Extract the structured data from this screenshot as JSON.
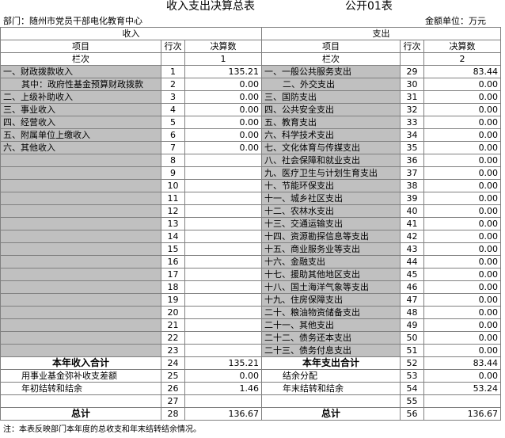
{
  "header": {
    "title": "收入支出决算总表",
    "form": "公开01表",
    "department": "部门：随州市党员干部电化教育中心",
    "unit": "金额单位：万元"
  },
  "columns": {
    "income": "收入",
    "expense": "支出",
    "item": "项目",
    "line": "行次",
    "amount": "决算数",
    "index": "栏次",
    "col1": "1",
    "col2": "2"
  },
  "rows": [
    [
      "一、财政拨款收入",
      1,
      "135.21",
      "一、一般公共服务支出",
      29,
      "83.44"
    ],
    [
      "其中：政府性基金预算财政拨款",
      2,
      "0.00",
      "二、外交支出",
      30,
      "0.00"
    ],
    [
      "二、上级补助收入",
      3,
      "0.00",
      "三、国防支出",
      31,
      "0.00"
    ],
    [
      "三、事业收入",
      4,
      "0.00",
      "四、公共安全支出",
      32,
      "0.00"
    ],
    [
      "四、经营收入",
      5,
      "0.00",
      "五、教育支出",
      33,
      "0.00"
    ],
    [
      "五、附属单位上缴收入",
      6,
      "0.00",
      "六、科学技术支出",
      34,
      "0.00"
    ],
    [
      "六、其他收入",
      7,
      "0.00",
      "七、文化体育与传媒支出",
      35,
      "0.00"
    ],
    [
      null,
      8,
      null,
      "八、社会保障和就业支出",
      36,
      "0.00"
    ],
    [
      null,
      9,
      null,
      "九、医疗卫生与计划生育支出",
      37,
      "0.00"
    ],
    [
      null,
      10,
      null,
      "十、节能环保支出",
      38,
      "0.00"
    ],
    [
      null,
      11,
      null,
      "十一、城乡社区支出",
      39,
      "0.00"
    ],
    [
      null,
      12,
      null,
      "十二、农林水支出",
      40,
      "0.00"
    ],
    [
      null,
      13,
      null,
      "十三、交通运输支出",
      41,
      "0.00"
    ],
    [
      null,
      14,
      null,
      "十四、资源勘探信息等支出",
      42,
      "0.00"
    ],
    [
      null,
      15,
      null,
      "十五、商业服务业等支出",
      43,
      "0.00"
    ],
    [
      null,
      16,
      null,
      "十六、金融支出",
      44,
      "0.00"
    ],
    [
      null,
      17,
      null,
      "十七、援助其他地区支出",
      45,
      "0.00"
    ],
    [
      null,
      18,
      null,
      "十八、国土海洋气象等支出",
      46,
      "0.00"
    ],
    [
      null,
      19,
      null,
      "十九、住房保障支出",
      47,
      "0.00"
    ],
    [
      null,
      20,
      null,
      "二十、粮油物资储备支出",
      48,
      "0.00"
    ],
    [
      null,
      21,
      null,
      "二十一、其他支出",
      49,
      "0.00"
    ],
    [
      null,
      22,
      null,
      "二十二、债务还本支出",
      50,
      "0.00"
    ],
    [
      null,
      23,
      null,
      "二十三、债务付息支出",
      51,
      "0.00"
    ],
    [
      "本年收入合计",
      24,
      "135.21",
      "本年支出合计",
      52,
      "83.44"
    ],
    [
      "用事业基金弥补收支差额",
      25,
      "0.00",
      "结余分配",
      53,
      "0.00"
    ],
    [
      "年初结转和结余",
      26,
      "1.46",
      "年末结转和结余",
      54,
      "53.24"
    ],
    [
      null,
      27,
      null,
      null,
      55,
      null
    ],
    [
      "总计",
      28,
      "136.67",
      "总计",
      56,
      "136.67"
    ]
  ],
  "footnote": "注：本表反映部门本年度的总收支和年末结转结余情况。"
}
